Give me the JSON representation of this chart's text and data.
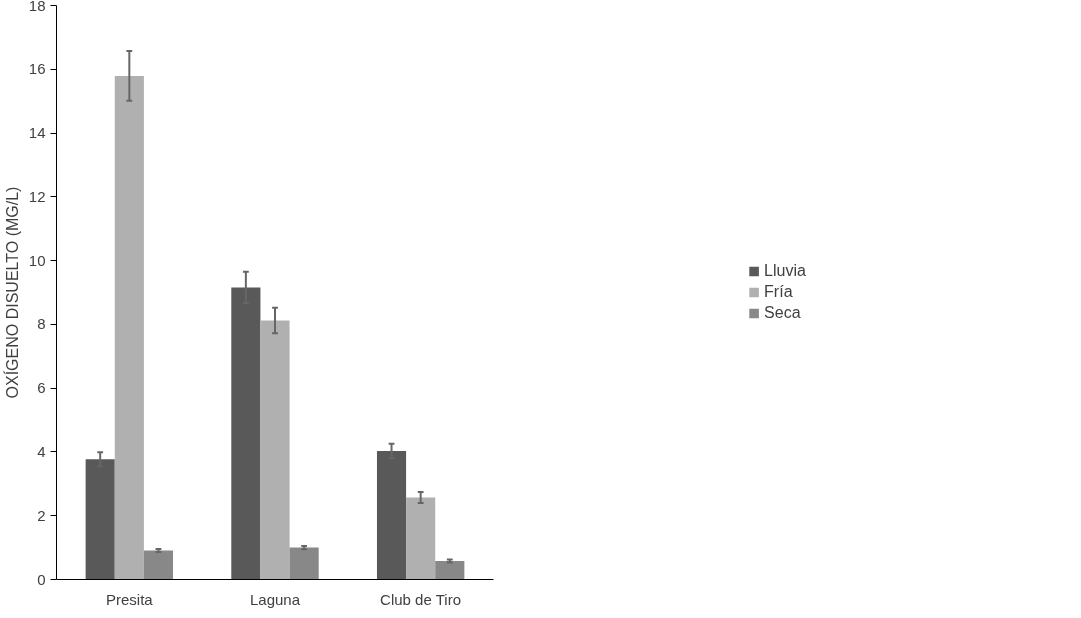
{
  "chart_data": {
    "type": "bar",
    "ylabel": "OXÍGENO DISUELTO (MG/L)",
    "categories": [
      "Presita",
      "Laguna",
      "Club de Tiro"
    ],
    "series": [
      {
        "name": "Lluvia",
        "color": "#595959",
        "values": [
          3.77,
          9.16,
          4.03
        ],
        "errors": [
          0.22,
          0.49,
          0.23
        ]
      },
      {
        "name": "Fría",
        "color": "#b0b0b0",
        "values": [
          15.79,
          8.12,
          2.57
        ],
        "errors": [
          0.78,
          0.4,
          0.17
        ]
      },
      {
        "name": "Seca",
        "color": "#888888",
        "values": [
          0.91,
          1.0,
          0.58
        ],
        "errors": [
          0.05,
          0.05,
          0.05
        ]
      }
    ],
    "ylim": [
      0,
      18
    ],
    "yticks": [
      0,
      2,
      4,
      6,
      8,
      10,
      12,
      14,
      16,
      18
    ],
    "grid": false,
    "legend": "right"
  }
}
